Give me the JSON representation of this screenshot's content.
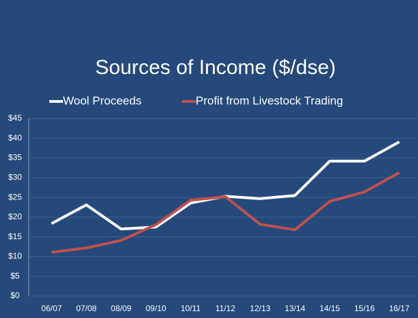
{
  "chart_data": {
    "type": "line",
    "title": "Sources of Income ($/dse)",
    "categories": [
      "06/07",
      "07/08",
      "08/09",
      "09/10",
      "10/11",
      "11/12",
      "12/13",
      "13/14",
      "14/15",
      "15/16",
      "16/17"
    ],
    "series": [
      {
        "name": "Wool Proceeds",
        "color": "#ffffff",
        "values": [
          18.4,
          23.1,
          17.0,
          17.5,
          23.6,
          25.3,
          24.7,
          25.5,
          34.2,
          34.2,
          39.1
        ]
      },
      {
        "name": "Profit from Livestock Trading",
        "color": "#c0504d",
        "values": [
          11.1,
          12.2,
          14.1,
          18.1,
          24.3,
          25.2,
          18.2,
          16.8,
          24.0,
          26.4,
          31.3
        ]
      }
    ],
    "ylim": [
      0,
      45
    ],
    "yticks": [
      {
        "value": 0,
        "label": "$0"
      },
      {
        "value": 5,
        "label": "$5"
      },
      {
        "value": 10,
        "label": "$10"
      },
      {
        "value": 15,
        "label": "$15"
      },
      {
        "value": 20,
        "label": "$20"
      },
      {
        "value": 25,
        "label": "$25"
      },
      {
        "value": 30,
        "label": "$30"
      },
      {
        "value": 35,
        "label": "$35"
      },
      {
        "value": 40,
        "label": "$40"
      },
      {
        "value": 45,
        "label": "$45"
      }
    ],
    "grid": true,
    "legend": "top"
  }
}
